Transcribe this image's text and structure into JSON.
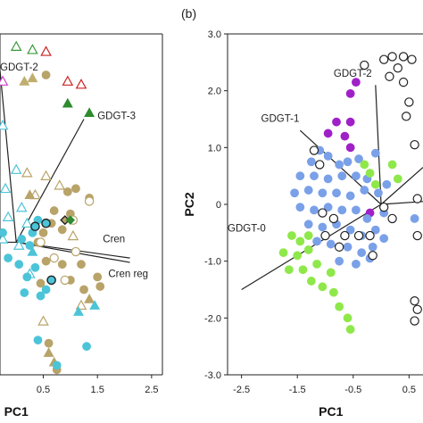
{
  "panel_labels": {
    "b": "(b)"
  },
  "chart_data": [
    {
      "type": "scatter",
      "panel": "a",
      "title": "",
      "xlabel": "PC1",
      "ylabel": "",
      "xlim": [
        -0.3,
        2.7
      ],
      "ylim": [
        -2.1,
        3.3
      ],
      "xticks": [
        "0.5",
        "1.5",
        "2.5"
      ],
      "xtick_values": [
        0.5,
        1.5,
        2.5
      ],
      "grid": false,
      "loadings": [
        {
          "name": "GDGT-2",
          "x": -0.3,
          "y": 2.72,
          "label_x": -0.3,
          "label_y": 2.72
        },
        {
          "name": "GDGT-3",
          "x": 1.25,
          "y": 1.95,
          "label_x": 1.5,
          "label_y": 1.95
        },
        {
          "name": "Cren",
          "x": 2.1,
          "y": -0.25,
          "label_x": 1.6,
          "label_y": 0.0
        },
        {
          "name": "Cren reg",
          "x": 2.1,
          "y": -0.32,
          "label_x": 1.7,
          "label_y": -0.55
        },
        {
          "name": "",
          "x": -0.3,
          "y": 0.0
        }
      ],
      "series": [
        {
          "marker": "triangle-open",
          "color": "#3a9a3a",
          "points": [
            [
              0.0,
              3.1
            ],
            [
              0.3,
              3.05
            ]
          ]
        },
        {
          "marker": "triangle-open",
          "color": "#cc2222",
          "points": [
            [
              0.55,
              3.02
            ],
            [
              0.95,
              2.55
            ],
            [
              1.2,
              2.5
            ]
          ]
        },
        {
          "marker": "triangle-open",
          "color": "#cc44cc",
          "points": [
            [
              -0.25,
              2.55
            ]
          ]
        },
        {
          "marker": "triangle",
          "color": "#2e8b2e",
          "points": [
            [
              0.95,
              2.2
            ],
            [
              1.35,
              2.05
            ]
          ]
        },
        {
          "marker": "triangle",
          "color": "#bfae6e",
          "points": [
            [
              0.3,
              2.6
            ],
            [
              0.15,
              2.55
            ]
          ]
        },
        {
          "marker": "circle",
          "color": "#b8a368",
          "points": [
            [
              0.55,
              2.65
            ],
            [
              0.95,
              0.8
            ],
            [
              1.1,
              0.85
            ],
            [
              1.35,
              0.7
            ],
            [
              1.0,
              0.45
            ],
            [
              0.7,
              0.5
            ],
            [
              0.65,
              0.3
            ],
            [
              0.85,
              0.2
            ],
            [
              0.5,
              0.15
            ],
            [
              0.4,
              0.0
            ],
            [
              0.55,
              -0.3
            ],
            [
              0.85,
              -0.35
            ],
            [
              1.0,
              -0.6
            ],
            [
              1.25,
              -0.75
            ],
            [
              1.5,
              -0.55
            ],
            [
              1.55,
              -0.7
            ],
            [
              1.2,
              -0.35
            ],
            [
              0.45,
              -0.65
            ],
            [
              0.6,
              -1.6
            ],
            [
              0.75,
              -2.02
            ]
          ]
        },
        {
          "marker": "circle-open",
          "color": "#b8a368",
          "points": [
            [
              1.35,
              0.65
            ],
            [
              1.05,
              0.35
            ],
            [
              0.45,
              -0.0
            ],
            [
              0.7,
              -0.25
            ],
            [
              1.1,
              -0.15
            ],
            [
              0.9,
              -0.6
            ]
          ]
        },
        {
          "marker": "triangle-open",
          "color": "#b8a368",
          "points": [
            [
              0.2,
              1.1
            ],
            [
              0.55,
              1.05
            ],
            [
              0.8,
              0.9
            ],
            [
              0.35,
              0.75
            ],
            [
              1.05,
              0.1
            ],
            [
              0.5,
              -1.25
            ],
            [
              1.2,
              -1.0
            ]
          ]
        },
        {
          "marker": "triangle",
          "color": "#b8a368",
          "points": [
            [
              0.25,
              0.75
            ],
            [
              0.6,
              -1.75
            ],
            [
              0.7,
              -1.9
            ],
            [
              1.35,
              -0.9
            ]
          ]
        },
        {
          "marker": "triangle-open",
          "color": "#4cc4d8",
          "points": [
            [
              -0.25,
              1.85
            ],
            [
              0.0,
              1.15
            ],
            [
              -0.2,
              0.85
            ],
            [
              0.1,
              0.55
            ],
            [
              -0.15,
              0.4
            ],
            [
              0.2,
              0.3
            ],
            [
              0.05,
              -0.05
            ],
            [
              -0.25,
              0.05
            ],
            [
              0.25,
              -0.5
            ]
          ]
        },
        {
          "marker": "triangle",
          "color": "#4cc4d8",
          "points": [
            [
              0.3,
              -0.15
            ],
            [
              1.45,
              -1.0
            ],
            [
              1.15,
              -1.1
            ]
          ]
        },
        {
          "marker": "circle",
          "color": "#4cc4d8",
          "points": [
            [
              -0.25,
              0.15
            ],
            [
              0.1,
              0.05
            ],
            [
              0.25,
              -0.05
            ],
            [
              0.4,
              0.35
            ],
            [
              0.3,
              0.15
            ],
            [
              -0.15,
              -0.25
            ],
            [
              0.05,
              -0.35
            ],
            [
              0.2,
              -0.55
            ],
            [
              0.35,
              -0.4
            ],
            [
              0.15,
              -0.8
            ],
            [
              0.45,
              -0.85
            ],
            [
              0.55,
              -0.75
            ],
            [
              0.4,
              -1.55
            ],
            [
              1.3,
              -1.65
            ],
            [
              0.75,
              -1.95
            ]
          ]
        },
        {
          "marker": "circle-ring",
          "color": "#4cc4d8",
          "points": [
            [
              0.55,
              0.3
            ],
            [
              0.35,
              0.25
            ],
            [
              0.65,
              -0.6
            ]
          ]
        },
        {
          "marker": "diamond-ring",
          "color": "#b8a368",
          "points": [
            [
              0.9,
              0.35
            ]
          ]
        },
        {
          "marker": "diamond",
          "color": "#2e8b2e",
          "points": [
            [
              1.0,
              0.35
            ]
          ]
        }
      ]
    },
    {
      "type": "scatter",
      "panel": "b",
      "title": "",
      "xlabel": "PC1",
      "ylabel": "PC2",
      "xlim": [
        -2.75,
        0.75
      ],
      "ylim": [
        -3.0,
        3.0
      ],
      "xticks": [
        "-2.5",
        "-1.5",
        "-0.5",
        "0.5"
      ],
      "xtick_values": [
        -2.5,
        -1.5,
        -0.5,
        0.5
      ],
      "yticks": [
        "3.0",
        "2.0",
        "1.0",
        "0",
        "-1.0",
        "-2.0",
        "-3.0"
      ],
      "ytick_values": [
        3.0,
        2.0,
        1.0,
        0.0,
        -1.0,
        -2.0,
        -3.0
      ],
      "grid": false,
      "loadings": [
        {
          "name": "GDGT-2",
          "x": -0.1,
          "y": 2.1,
          "label_x": -0.85,
          "label_y": 2.25
        },
        {
          "name": "GDGT-1",
          "x": -1.45,
          "y": 1.3,
          "label_x": -2.15,
          "label_y": 1.45
        },
        {
          "name": "GDGT-0",
          "x": -2.5,
          "y": -1.5,
          "label_x": -2.75,
          "label_y": -0.48
        },
        {
          "name": "",
          "x": 0.75,
          "y": 0.65
        },
        {
          "name": "",
          "x": 0.75,
          "y": 0.05
        }
      ],
      "series": [
        {
          "marker": "circle",
          "color": "#a020c8",
          "points": [
            [
              -0.45,
              2.15
            ],
            [
              -0.55,
              1.95
            ],
            [
              -0.55,
              1.45
            ],
            [
              -0.8,
              1.45
            ],
            [
              -0.95,
              1.25
            ],
            [
              -0.65,
              1.2
            ],
            [
              -0.55,
              1.0
            ],
            [
              -0.2,
              -0.15
            ]
          ]
        },
        {
          "marker": "circle",
          "color": "#7aa0e8",
          "points": [
            [
              -1.1,
              0.95
            ],
            [
              -1.25,
              0.75
            ],
            [
              -0.95,
              0.85
            ],
            [
              -0.75,
              0.7
            ],
            [
              -0.6,
              0.75
            ],
            [
              -0.4,
              0.8
            ],
            [
              -0.1,
              0.9
            ],
            [
              -1.45,
              0.5
            ],
            [
              -1.2,
              0.5
            ],
            [
              -0.95,
              0.45
            ],
            [
              -0.7,
              0.5
            ],
            [
              -0.45,
              0.5
            ],
            [
              -0.25,
              0.45
            ],
            [
              -1.55,
              0.2
            ],
            [
              -1.3,
              0.25
            ],
            [
              -1.05,
              0.2
            ],
            [
              -0.8,
              0.2
            ],
            [
              -0.55,
              0.15
            ],
            [
              -0.3,
              0.25
            ],
            [
              -0.05,
              0.2
            ],
            [
              0.1,
              0.35
            ],
            [
              -1.45,
              -0.05
            ],
            [
              -1.2,
              -0.1
            ],
            [
              -0.95,
              -0.05
            ],
            [
              -0.7,
              -0.1
            ],
            [
              -0.45,
              -0.1
            ],
            [
              -0.25,
              -0.25
            ],
            [
              0.05,
              -0.15
            ],
            [
              -1.3,
              -0.35
            ],
            [
              -1.05,
              -0.4
            ],
            [
              -0.8,
              -0.35
            ],
            [
              -0.55,
              -0.45
            ],
            [
              -0.35,
              -0.55
            ],
            [
              -0.1,
              -0.45
            ],
            [
              -1.15,
              -0.65
            ],
            [
              -0.9,
              -0.7
            ],
            [
              -0.6,
              -0.75
            ],
            [
              -0.35,
              -0.85
            ],
            [
              -0.15,
              -0.75
            ],
            [
              0.05,
              -0.6
            ],
            [
              -0.75,
              -1.0
            ],
            [
              -0.45,
              -1.05
            ],
            [
              -0.2,
              -0.95
            ],
            [
              0.6,
              -0.25
            ]
          ]
        },
        {
          "marker": "circle",
          "color": "#8fe84a",
          "points": [
            [
              -0.3,
              0.7
            ],
            [
              -0.2,
              0.55
            ],
            [
              -0.1,
              0.35
            ],
            [
              0.2,
              0.7
            ],
            [
              0.3,
              0.45
            ],
            [
              -1.3,
              -0.55
            ],
            [
              -1.45,
              -0.65
            ],
            [
              -1.6,
              -0.55
            ],
            [
              -1.75,
              -0.85
            ],
            [
              -1.5,
              -0.9
            ],
            [
              -1.3,
              -0.8
            ],
            [
              -1.65,
              -1.15
            ],
            [
              -1.4,
              -1.15
            ],
            [
              -1.15,
              -1.05
            ],
            [
              -1.25,
              -1.35
            ],
            [
              -1.05,
              -1.45
            ],
            [
              -0.85,
              -1.55
            ],
            [
              -0.75,
              -1.8
            ],
            [
              -0.6,
              -2.0
            ],
            [
              -0.55,
              -2.2
            ],
            [
              -0.9,
              -1.2
            ]
          ]
        },
        {
          "marker": "circle-open",
          "color": "#222222",
          "points": [
            [
              -0.3,
              2.45
            ],
            [
              0.05,
              2.55
            ],
            [
              0.2,
              2.6
            ],
            [
              0.4,
              2.6
            ],
            [
              0.55,
              2.55
            ],
            [
              0.3,
              2.4
            ],
            [
              0.15,
              2.25
            ],
            [
              0.4,
              2.15
            ],
            [
              0.5,
              1.8
            ],
            [
              0.45,
              1.55
            ],
            [
              0.6,
              1.05
            ],
            [
              0.65,
              0.1
            ],
            [
              -1.2,
              0.95
            ],
            [
              -1.1,
              0.7
            ],
            [
              0.05,
              -0.05
            ],
            [
              0.2,
              -0.25
            ],
            [
              -1.05,
              -0.15
            ],
            [
              -0.85,
              -0.25
            ],
            [
              -1.0,
              -0.55
            ],
            [
              -0.65,
              -0.55
            ],
            [
              -0.4,
              -0.55
            ],
            [
              -0.2,
              -0.55
            ],
            [
              -0.75,
              -0.75
            ],
            [
              -0.15,
              -0.9
            ],
            [
              0.65,
              -0.55
            ],
            [
              0.6,
              -1.7
            ],
            [
              0.65,
              -1.85
            ],
            [
              0.6,
              -2.05
            ]
          ]
        }
      ]
    }
  ]
}
